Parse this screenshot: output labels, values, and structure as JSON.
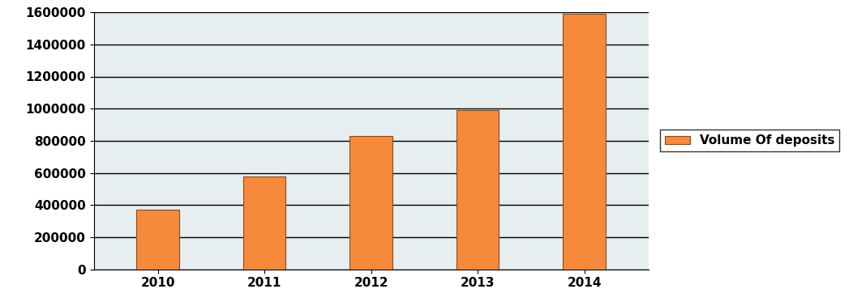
{
  "chart_data": {
    "type": "bar",
    "categories": [
      "2010",
      "2011",
      "2012",
      "2013",
      "2014"
    ],
    "series": [
      {
        "name": "Volume Of deposits",
        "color": "#f7893b",
        "values": [
          370000,
          580000,
          830000,
          990000,
          1590000
        ]
      }
    ],
    "ylim": [
      0,
      1600000
    ],
    "yticks": [
      0,
      200000,
      400000,
      600000,
      800000,
      1000000,
      1200000,
      1400000,
      1600000
    ],
    "grid": true,
    "legend": "right"
  }
}
